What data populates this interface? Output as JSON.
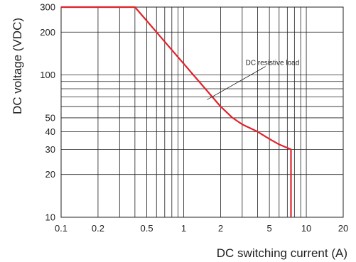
{
  "chart_data": {
    "type": "line",
    "title": "",
    "xlabel": "DC switching current (A)",
    "ylabel": "DC voltage (VDC)",
    "x_scale": "log",
    "y_scale": "log",
    "xlim": [
      0.1,
      20
    ],
    "ylim": [
      10,
      300
    ],
    "grid": true,
    "x_ticks": [
      {
        "value": 0.1,
        "label": "0.1"
      },
      {
        "value": 0.2,
        "label": "0.2"
      },
      {
        "value": 0.5,
        "label": "0.5"
      },
      {
        "value": 1,
        "label": "1"
      },
      {
        "value": 2,
        "label": "2"
      },
      {
        "value": 5,
        "label": "5"
      },
      {
        "value": 10,
        "label": "10"
      },
      {
        "value": 20,
        "label": "20"
      }
    ],
    "y_ticks": [
      {
        "value": 10,
        "label": "10"
      },
      {
        "value": 20,
        "label": "20"
      },
      {
        "value": 30,
        "label": "30"
      },
      {
        "value": 40,
        "label": "40"
      },
      {
        "value": 50,
        "label": "50"
      },
      {
        "value": 100,
        "label": "100"
      },
      {
        "value": 200,
        "label": "200"
      },
      {
        "value": 300,
        "label": "300"
      }
    ],
    "x_gridlines": [
      0.1,
      0.2,
      0.3,
      0.4,
      0.5,
      0.6,
      0.7,
      0.8,
      0.9,
      1,
      2,
      3,
      4,
      5,
      6,
      7,
      8,
      9,
      10,
      20
    ],
    "y_gridlines": [
      10,
      20,
      30,
      40,
      50,
      60,
      70,
      80,
      90,
      100,
      200,
      300
    ],
    "series": [
      {
        "color": "#e0232a",
        "points": [
          [
            0.1,
            300
          ],
          [
            0.4,
            300
          ],
          [
            0.5,
            240
          ],
          [
            0.6,
            200
          ],
          [
            0.7,
            171.4
          ],
          [
            0.8,
            150
          ],
          [
            1,
            120
          ],
          [
            1.2,
            100
          ],
          [
            1.5,
            80
          ],
          [
            2,
            60
          ],
          [
            2.5,
            50
          ],
          [
            3,
            45
          ],
          [
            4,
            40
          ],
          [
            5,
            35.5
          ],
          [
            6,
            32.5
          ],
          [
            7.5,
            30
          ],
          [
            7.5,
            10
          ]
        ]
      }
    ],
    "annotations": [
      {
        "text": "DC resistive load",
        "x": 3.2,
        "y": 100,
        "point_x": 1.55,
        "point_y": 67
      }
    ]
  }
}
